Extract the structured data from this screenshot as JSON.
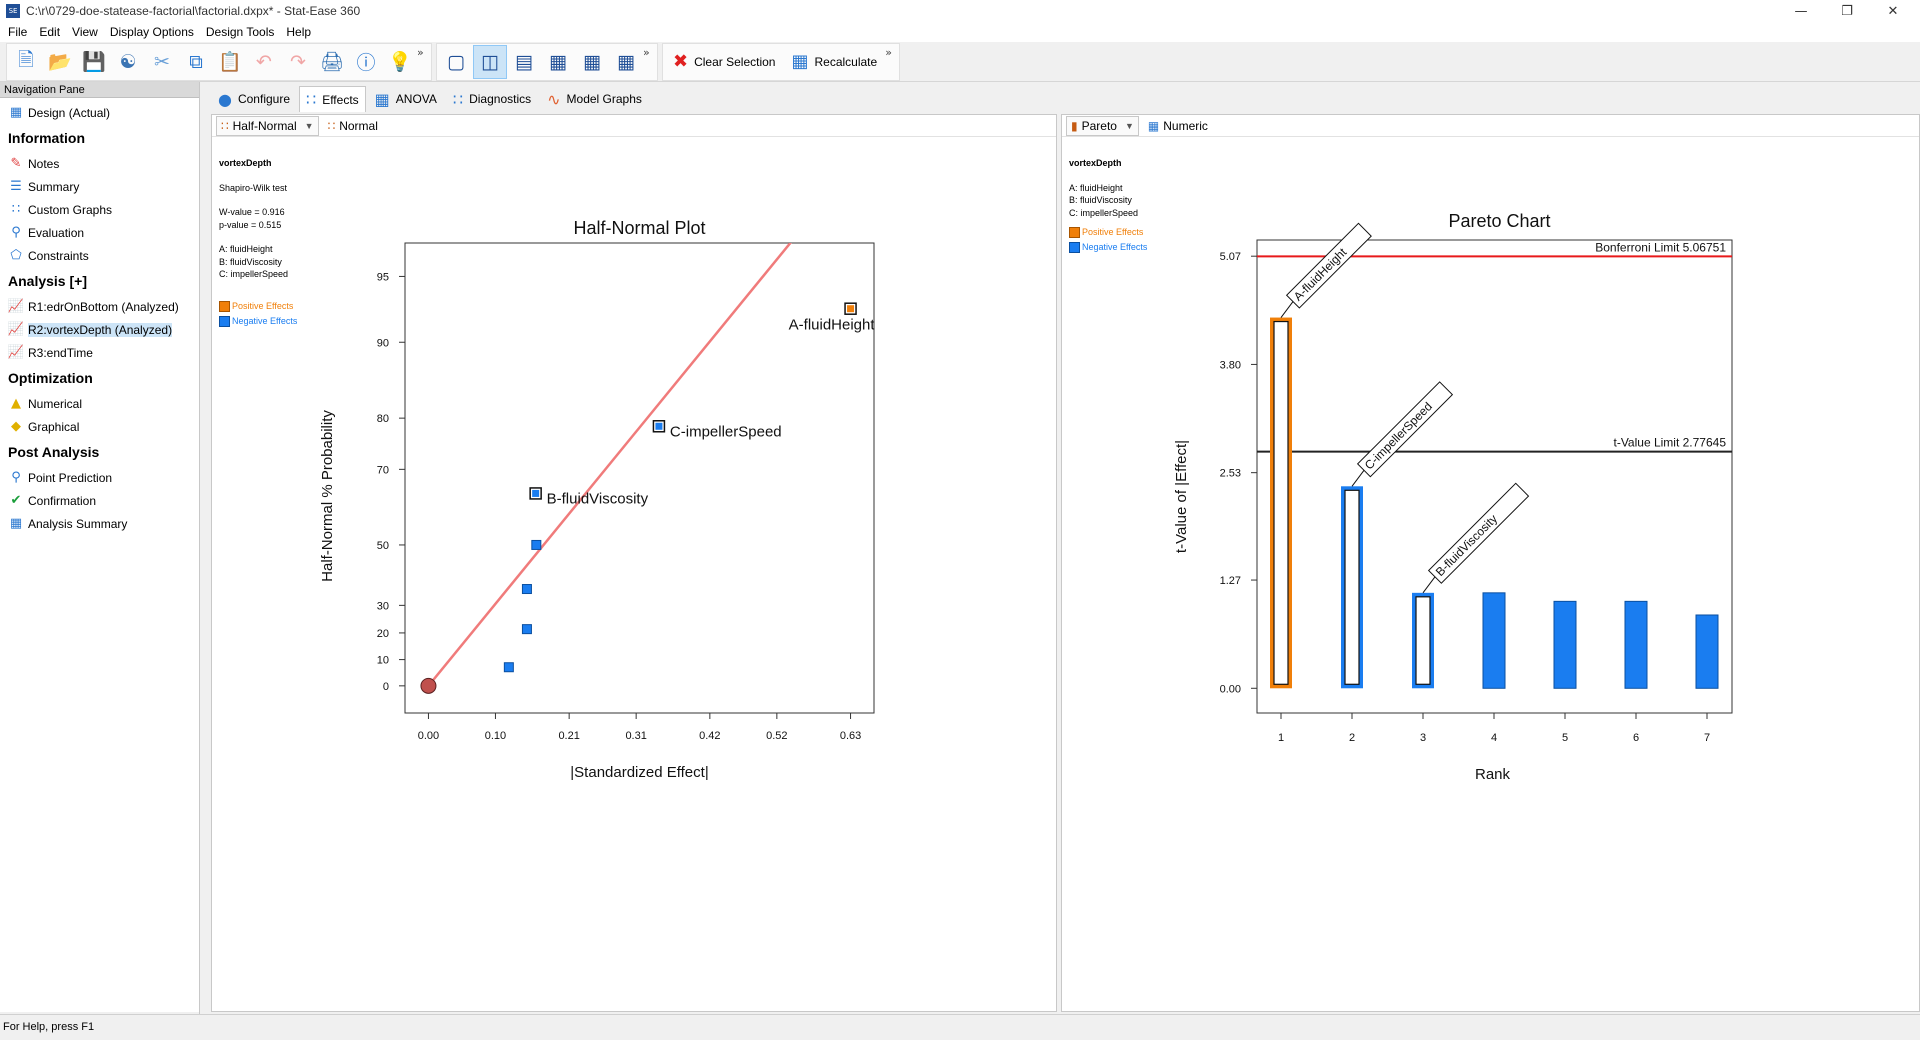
{
  "window": {
    "title": "C:\\r\\0729-doe-statease-factorial\\factorial.dxpx* - Stat-Ease 360",
    "app_icon_text": "SE"
  },
  "menu": [
    "File",
    "Edit",
    "View",
    "Display Options",
    "Design Tools",
    "Help"
  ],
  "toolbar": {
    "clear_selection": "Clear Selection",
    "recalculate": "Recalculate"
  },
  "nav": {
    "header": "Navigation Pane",
    "design": "Design (Actual)",
    "information_header": "Information",
    "information": [
      "Notes",
      "Summary",
      "Custom Graphs",
      "Evaluation",
      "Constraints"
    ],
    "analysis_header": "Analysis [+]",
    "analysis": [
      "R1:edrOnBottom (Analyzed)",
      "R2:vortexDepth (Analyzed)",
      "R3:endTime"
    ],
    "optimization_header": "Optimization",
    "optimization": [
      "Numerical",
      "Graphical"
    ],
    "post_header": "Post Analysis",
    "post": [
      "Point Prediction",
      "Confirmation",
      "Analysis Summary"
    ]
  },
  "tabs": [
    "Configure",
    "Effects",
    "ANOVA",
    "Diagnostics",
    "Model Graphs"
  ],
  "left_panel": {
    "subtabs": [
      "Half-Normal",
      "Normal"
    ],
    "info": {
      "response": "vortexDepth",
      "test": "Shapiro-Wilk test",
      "w_value": "W-value = 0.916",
      "p_value": "p-value = 0.515",
      "factors": [
        "A: fluidHeight",
        "B: fluidViscosity",
        "C: impellerSpeed"
      ],
      "legend_positive": "Positive Effects",
      "legend_negative": "Negative Effects"
    }
  },
  "right_panel": {
    "subtabs": [
      "Pareto",
      "Numeric"
    ],
    "info": {
      "response": "vortexDepth",
      "factors": [
        "A: fluidHeight",
        "B: fluidViscosity",
        "C: impellerSpeed"
      ],
      "legend_positive": "Positive Effects",
      "legend_negative": "Negative Effects"
    }
  },
  "colors": {
    "positive": "#f07f09",
    "negative": "#1a7df0",
    "fit_line": "#f07b7b",
    "bonferroni": "#e8191a",
    "origin_point": "#c0504d"
  },
  "chart_data": [
    {
      "type": "scatter",
      "title": "Half-Normal Plot",
      "xlabel": "|Standardized Effect|",
      "ylabel": "Half-Normal % Probability",
      "x_ticks": [
        "0.00",
        "0.10",
        "0.21",
        "0.31",
        "0.42",
        "0.52",
        "0.63"
      ],
      "y_ticks": [
        "0",
        "10",
        "20",
        "30",
        "50",
        "70",
        "80",
        "90",
        "95"
      ],
      "xlim": [
        -0.035,
        0.665
      ],
      "y_scale": "half-normal probability",
      "fit_line": [
        [
          0.0,
          0
        ],
        [
          0.575,
          97.6
        ]
      ],
      "points": [
        {
          "x": 0.0,
          "y": 0,
          "label": "",
          "kind": "origin"
        },
        {
          "x": 0.12,
          "y": 7.1,
          "label": "",
          "kind": "negative"
        },
        {
          "x": 0.147,
          "y": 21.4,
          "label": "",
          "kind": "negative"
        },
        {
          "x": 0.147,
          "y": 35.7,
          "label": "",
          "kind": "negative"
        },
        {
          "x": 0.161,
          "y": 50.0,
          "label": "",
          "kind": "negative"
        },
        {
          "x": 0.16,
          "y": 64.3,
          "label": "B-fluidViscosity",
          "kind": "negative-selected"
        },
        {
          "x": 0.344,
          "y": 78.6,
          "label": "C-impellerSpeed",
          "kind": "negative-selected"
        },
        {
          "x": 0.63,
          "y": 92.9,
          "label": "A-fluidHeight",
          "kind": "positive-selected"
        }
      ]
    },
    {
      "type": "bar",
      "title": "Pareto Chart",
      "xlabel": "Rank",
      "ylabel": "t-Value of |Effect|",
      "categories": [
        "1",
        "2",
        "3",
        "4",
        "5",
        "6",
        "7"
      ],
      "values": [
        4.35,
        2.37,
        1.12,
        1.12,
        1.02,
        1.02,
        0.86
      ],
      "bar_kinds": [
        "positive-selected",
        "negative-selected",
        "negative-selected",
        "negative",
        "negative",
        "negative",
        "negative"
      ],
      "bar_labels": [
        "A-fluidHeight",
        "C-impellerSpeed",
        "B-fluidViscosity",
        "",
        "",
        "",
        ""
      ],
      "y_ticks": [
        "0.00",
        "1.27",
        "2.53",
        "3.80",
        "5.07"
      ],
      "ylim": [
        -0.29,
        5.26
      ],
      "limits": [
        {
          "name": "Bonferroni Limit 5.06751",
          "value": 5.06751,
          "color": "#e8191a"
        },
        {
          "name": "t-Value Limit 2.77645",
          "value": 2.77645,
          "color": "#222222"
        }
      ]
    }
  ],
  "status": "For Help, press F1"
}
